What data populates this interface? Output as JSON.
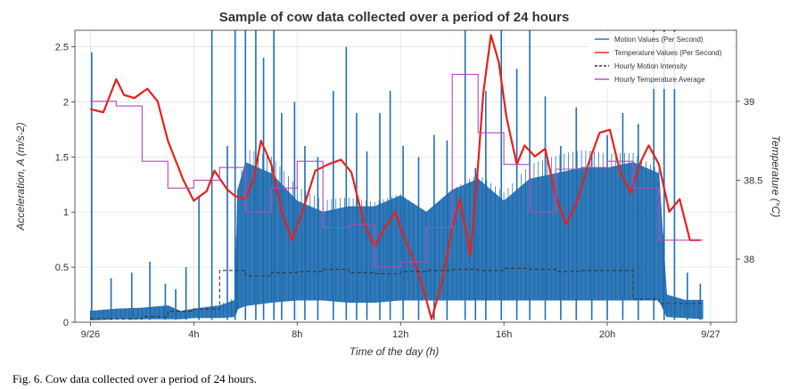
{
  "chart_data": {
    "type": "line",
    "title": "Sample of cow data collected over a period of 24 hours",
    "xlabel": "Time of the day (h)",
    "ylabel_left": "Acceleration, A (m/s-2)",
    "ylabel_right": "Temperature (°C)",
    "xlim": [
      -0.6,
      25.0
    ],
    "ylim_left": [
      0,
      2.65
    ],
    "ylim_right": [
      37.6,
      39.45
    ],
    "x_ticks": [
      {
        "x": 0,
        "label": "9/26"
      },
      {
        "x": 4,
        "label": "4h"
      },
      {
        "x": 8,
        "label": "8h"
      },
      {
        "x": 12,
        "label": "12h"
      },
      {
        "x": 16,
        "label": "16h"
      },
      {
        "x": 20,
        "label": "20h"
      },
      {
        "x": 24,
        "label": "9/27"
      }
    ],
    "y_ticks_left": [
      0,
      0.5,
      1,
      1.5,
      2,
      2.5
    ],
    "y_ticks_right": [
      38,
      38.5,
      39
    ],
    "grid": true,
    "legend_position": "top-right",
    "legend": [
      {
        "label": "Motion Values (Per Second)",
        "color": "#1f6fb3",
        "style": "solid"
      },
      {
        "label": "Temperature Values (Per Second)",
        "color": "#e8201a",
        "style": "solid"
      },
      {
        "label": "Hourly Motion Intensity",
        "color": "#333333",
        "style": "dashed"
      },
      {
        "label": "Hourly Temperature Average",
        "color": "#b04bb8",
        "style": "solid"
      }
    ],
    "series": [
      {
        "name": "Motion Values (Per Second)",
        "axis": "left",
        "type": "band",
        "color": "#1f6fb3",
        "x": [
          0,
          1,
          2,
          3,
          3.5,
          4,
          5,
          5.6,
          5.7,
          6,
          7,
          8,
          9,
          10,
          11,
          12,
          13,
          14,
          15,
          16,
          17,
          18,
          19,
          20,
          21,
          22,
          22.3,
          23,
          23.7
        ],
        "base": [
          0.02,
          0.03,
          0.03,
          0.03,
          0.03,
          0.04,
          0.04,
          0.05,
          0.12,
          0.15,
          0.18,
          0.2,
          0.2,
          0.18,
          0.18,
          0.2,
          0.2,
          0.2,
          0.2,
          0.2,
          0.2,
          0.2,
          0.2,
          0.2,
          0.2,
          0.2,
          0.05,
          0.04,
          0.03
        ],
        "top": [
          0.1,
          0.12,
          0.13,
          0.15,
          0.1,
          0.12,
          0.15,
          0.2,
          1.2,
          1.45,
          1.35,
          1.1,
          1.0,
          1.05,
          1.05,
          1.15,
          1.0,
          1.2,
          1.3,
          1.1,
          1.3,
          1.35,
          1.4,
          1.4,
          1.45,
          1.35,
          0.25,
          0.2,
          0.2
        ],
        "spikes": [
          [
            0.05,
            2.45
          ],
          [
            0.8,
            0.4
          ],
          [
            1.6,
            0.45
          ],
          [
            2.3,
            0.55
          ],
          [
            2.9,
            0.35
          ],
          [
            3.3,
            0.3
          ],
          [
            3.7,
            0.5
          ],
          [
            4.2,
            1.15
          ],
          [
            4.7,
            2.65
          ],
          [
            5.3,
            1.6
          ],
          [
            5.6,
            2.65
          ],
          [
            6.0,
            2.65
          ],
          [
            6.4,
            2.65
          ],
          [
            6.7,
            2.4
          ],
          [
            7.1,
            2.65
          ],
          [
            7.4,
            1.9
          ],
          [
            7.9,
            2.0
          ],
          [
            8.3,
            1.6
          ],
          [
            8.8,
            1.5
          ],
          [
            9.4,
            2.1
          ],
          [
            9.9,
            2.5
          ],
          [
            10.3,
            1.9
          ],
          [
            10.7,
            1.55
          ],
          [
            11.2,
            1.9
          ],
          [
            11.6,
            2.1
          ],
          [
            12.1,
            1.6
          ],
          [
            12.7,
            1.5
          ],
          [
            13.3,
            1.7
          ],
          [
            13.8,
            1.65
          ],
          [
            14.5,
            2.65
          ],
          [
            14.9,
            1.4
          ],
          [
            15.3,
            2.1
          ],
          [
            15.9,
            2.65
          ],
          [
            16.5,
            2.3
          ],
          [
            17.0,
            2.65
          ],
          [
            17.6,
            2.05
          ],
          [
            18.2,
            1.6
          ],
          [
            18.8,
            1.95
          ],
          [
            19.4,
            1.55
          ],
          [
            20.0,
            1.7
          ],
          [
            20.6,
            1.9
          ],
          [
            21.2,
            1.8
          ],
          [
            21.8,
            2.65
          ],
          [
            22.2,
            2.65
          ],
          [
            22.6,
            2.65
          ],
          [
            23.1,
            0.45
          ],
          [
            23.6,
            0.35
          ]
        ]
      },
      {
        "name": "Temperature Values (Per Second)",
        "axis": "right",
        "type": "line",
        "color": "#e8201a",
        "x": [
          0,
          0.5,
          1,
          1.3,
          1.7,
          2.2,
          2.6,
          3.0,
          3.6,
          4.0,
          4.5,
          4.8,
          5.3,
          5.6,
          6.0,
          6.3,
          6.6,
          7.0,
          7.4,
          7.8,
          8.2,
          8.7,
          9.2,
          9.7,
          10.1,
          10.6,
          11.0,
          11.4,
          11.8,
          12.1,
          12.5,
          12.9,
          13.2,
          13.6,
          14.0,
          14.3,
          14.7,
          15.0,
          15.2,
          15.5,
          15.8,
          16.1,
          16.5,
          16.8,
          17.2,
          17.6,
          18.0,
          18.4,
          18.8,
          19.3,
          19.7,
          20.1,
          20.5,
          20.9,
          21.3,
          21.6,
          22.0,
          22.4,
          22.8,
          23.2,
          23.6
        ],
        "y": [
          38.95,
          38.93,
          39.14,
          39.04,
          39.02,
          39.08,
          39.0,
          38.75,
          38.5,
          38.37,
          38.43,
          38.56,
          38.44,
          38.4,
          38.38,
          38.5,
          38.75,
          38.6,
          38.3,
          38.12,
          38.3,
          38.56,
          38.6,
          38.63,
          38.55,
          38.22,
          38.08,
          38.2,
          38.3,
          38.15,
          38.0,
          37.8,
          37.62,
          37.85,
          38.2,
          38.38,
          38.02,
          38.6,
          39.05,
          39.42,
          39.25,
          38.9,
          38.6,
          38.72,
          38.65,
          38.7,
          38.4,
          38.22,
          38.35,
          38.62,
          38.8,
          38.82,
          38.55,
          38.42,
          38.62,
          38.72,
          38.6,
          38.3,
          38.38,
          38.12,
          38.12
        ]
      },
      {
        "name": "Hourly Motion Intensity",
        "axis": "left",
        "type": "step",
        "color": "#333333",
        "x": [
          0,
          1,
          2,
          3,
          4,
          5,
          6,
          7,
          8,
          9,
          10,
          11,
          12,
          13,
          14,
          15,
          16,
          17,
          18,
          19,
          20,
          21,
          22,
          23.7
        ],
        "y": [
          0.03,
          0.03,
          0.05,
          0.1,
          0.12,
          0.47,
          0.42,
          0.45,
          0.46,
          0.48,
          0.45,
          0.44,
          0.46,
          0.47,
          0.48,
          0.47,
          0.49,
          0.48,
          0.46,
          0.47,
          0.47,
          0.21,
          0.17,
          0.17
        ]
      },
      {
        "name": "Hourly Temperature Average",
        "axis": "right",
        "type": "step",
        "color": "#b04bb8",
        "x": [
          0,
          1,
          2,
          3,
          4,
          5,
          6,
          7,
          8,
          9,
          10,
          11,
          12,
          13,
          14,
          15,
          16,
          17,
          18,
          19,
          20,
          21,
          22,
          23.7
        ],
        "y": [
          39.0,
          38.97,
          38.62,
          38.45,
          38.5,
          38.58,
          38.3,
          38.45,
          38.62,
          38.2,
          38.22,
          37.95,
          37.98,
          38.2,
          39.17,
          38.8,
          38.6,
          38.3,
          38.57,
          38.58,
          38.62,
          38.45,
          38.12,
          38.12
        ]
      }
    ]
  },
  "caption": "Fig. 6.  Cow data collected over a period of 24 hours."
}
